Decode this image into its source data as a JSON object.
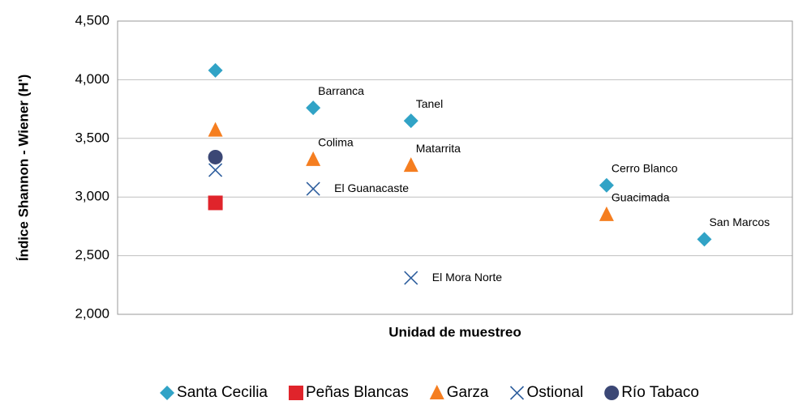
{
  "chart_data": {
    "type": "scatter",
    "ylabel": "Índice  Shannon - Wiener (H')",
    "xlabel": "Unidad de muestreo",
    "categories": [
      null,
      null,
      null,
      null,
      null,
      null
    ],
    "ylim": [
      2.0,
      4.5
    ],
    "yticks": [
      {
        "value": 2.0,
        "label": "2,000"
      },
      {
        "value": 2.5,
        "label": "2,500"
      },
      {
        "value": 3.0,
        "label": "3,000"
      },
      {
        "value": 3.5,
        "label": "3,500"
      },
      {
        "value": 4.0,
        "label": "4,000"
      },
      {
        "value": 4.5,
        "label": "4,500"
      }
    ],
    "grid": true,
    "legend": "bottom",
    "series": [
      {
        "name": "Santa Cecilia",
        "color": "#31a3c6",
        "marker": "diamond",
        "values": [
          4.08,
          3.76,
          3.65,
          null,
          3.1,
          2.64
        ],
        "labels": [
          null,
          "Barranca",
          "Tanel",
          null,
          "Cerro Blanco",
          "San Marcos"
        ]
      },
      {
        "name": "Peñas Blancas",
        "color": "#e0242b",
        "marker": "square",
        "values": [
          2.95,
          null,
          null,
          null,
          null,
          null
        ]
      },
      {
        "name": "Garza",
        "color": "#f57e20",
        "marker": "triangle",
        "values": [
          3.57,
          3.32,
          3.27,
          null,
          2.85,
          null
        ],
        "labels": [
          null,
          "Colima",
          "Matarrita",
          null,
          "Guacimada",
          null
        ]
      },
      {
        "name": "Ostional",
        "color": "#2f5f9e",
        "marker": "x",
        "values": [
          3.23,
          3.07,
          2.31,
          null,
          null,
          null
        ],
        "labels": [
          null,
          "El Guanacaste",
          "El Mora Norte",
          null,
          null,
          null
        ]
      },
      {
        "name": "Río Tabaco",
        "color": "#3b4775",
        "marker": "circle",
        "values": [
          3.34,
          null,
          null,
          null,
          null,
          null
        ]
      }
    ]
  }
}
